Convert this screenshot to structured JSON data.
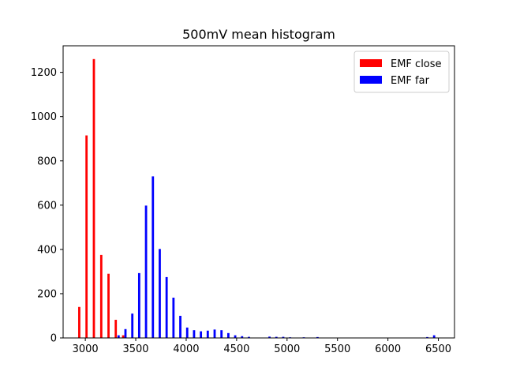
{
  "chart_data": {
    "type": "bar",
    "title": "500mV mean histogram",
    "xlabel": "",
    "ylabel": "",
    "xlim": [
      2780,
      6660
    ],
    "ylim": [
      0,
      1320
    ],
    "x_ticks": [
      3000,
      3500,
      4000,
      4500,
      5000,
      5500,
      6000,
      6500
    ],
    "y_ticks": [
      0,
      200,
      400,
      600,
      800,
      1000,
      1200
    ],
    "bar_width": 22,
    "grid": false,
    "legend_position": "top-right",
    "series": [
      {
        "name": "EMF close",
        "color": "#ff0000",
        "points": [
          {
            "x": 2940,
            "y": 140
          },
          {
            "x": 3012,
            "y": 915
          },
          {
            "x": 3085,
            "y": 1260
          },
          {
            "x": 3158,
            "y": 375
          },
          {
            "x": 3230,
            "y": 290
          },
          {
            "x": 3302,
            "y": 82
          },
          {
            "x": 3375,
            "y": 12
          }
        ]
      },
      {
        "name": "EMF far",
        "color": "#0000ff",
        "points": [
          {
            "x": 3330,
            "y": 12
          },
          {
            "x": 3398,
            "y": 40
          },
          {
            "x": 3466,
            "y": 110
          },
          {
            "x": 3534,
            "y": 293
          },
          {
            "x": 3602,
            "y": 598
          },
          {
            "x": 3670,
            "y": 730
          },
          {
            "x": 3738,
            "y": 402
          },
          {
            "x": 3806,
            "y": 275
          },
          {
            "x": 3874,
            "y": 182
          },
          {
            "x": 3942,
            "y": 100
          },
          {
            "x": 4010,
            "y": 47
          },
          {
            "x": 4078,
            "y": 35
          },
          {
            "x": 4146,
            "y": 30
          },
          {
            "x": 4214,
            "y": 33
          },
          {
            "x": 4282,
            "y": 38
          },
          {
            "x": 4350,
            "y": 35
          },
          {
            "x": 4418,
            "y": 22
          },
          {
            "x": 4486,
            "y": 12
          },
          {
            "x": 4554,
            "y": 8
          },
          {
            "x": 4622,
            "y": 5
          },
          {
            "x": 4826,
            "y": 6
          },
          {
            "x": 4894,
            "y": 5
          },
          {
            "x": 4962,
            "y": 5
          },
          {
            "x": 5030,
            "y": 3
          },
          {
            "x": 5166,
            "y": 3
          },
          {
            "x": 5302,
            "y": 4
          },
          {
            "x": 6390,
            "y": 4
          },
          {
            "x": 6458,
            "y": 12
          }
        ]
      }
    ]
  }
}
